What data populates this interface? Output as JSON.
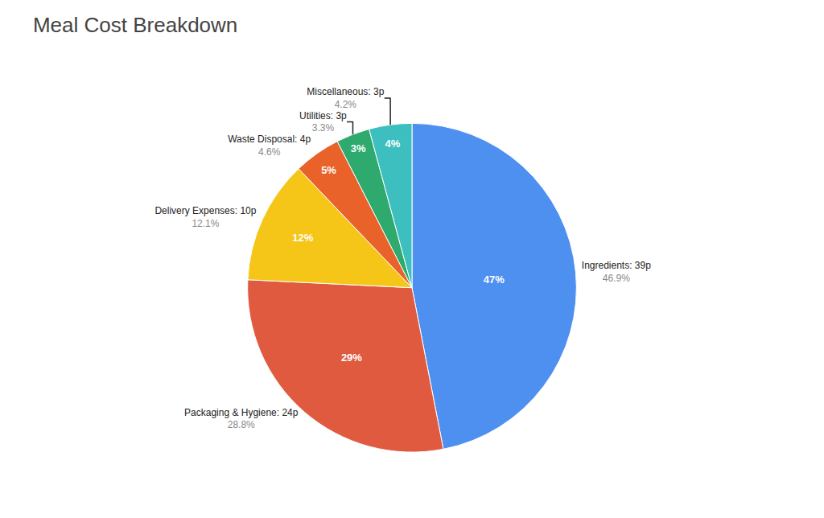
{
  "chart_data": {
    "type": "pie",
    "title": "Meal Cost Breakdown",
    "categories": [
      "Ingredients: 39p",
      "Packaging & Hygiene: 24p",
      "Delivery Expenses: 10p",
      "Waste Disposal: 4p",
      "Utilities: 3p",
      "Miscellaneous: 3p"
    ],
    "values": [
      46.9,
      28.8,
      12.1,
      4.6,
      3.3,
      4.2
    ],
    "value_labels": [
      "47%",
      "29%",
      "12%",
      "5%",
      "3%",
      "4%"
    ],
    "colors": [
      "#4d90f0",
      "#e05a40",
      "#f5c518",
      "#e8622a",
      "#2eaa6e",
      "#3dbfbf"
    ],
    "annotations": [
      {
        "category": "Ingredients: 39p",
        "text": "46.9%"
      },
      {
        "category": "Packaging & Hygiene: 24p",
        "text": "28.8%"
      },
      {
        "category": "Delivery Expenses: 10p",
        "text": "12.1%"
      },
      {
        "category": "Waste Disposal: 4p",
        "text": "4.6%"
      },
      {
        "category": "Utilities: 3p",
        "text": "3.3%"
      },
      {
        "category": "Miscellaneous: 3p",
        "text": "4.2%"
      }
    ]
  }
}
